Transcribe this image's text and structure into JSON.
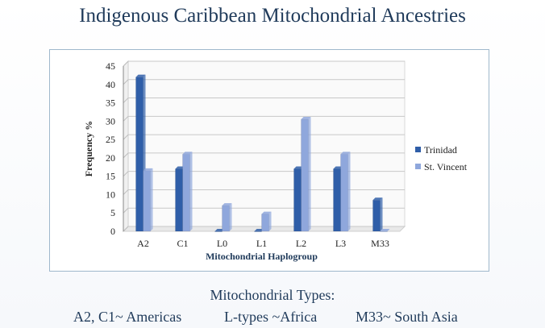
{
  "slide": {
    "title": "Indigenous Caribbean Mitochondrial Ancestries",
    "types_heading": "Mitochondrial Types:",
    "types": [
      "A2, C1~ Americas",
      "L-types ~Africa",
      "M33~ South Asia"
    ]
  },
  "colors": {
    "trinidad": "#2f5ea8",
    "st_vincent": "#8fa7dc",
    "title": "#1f3a5a"
  },
  "chart_data": {
    "type": "bar",
    "title": "",
    "xlabel": "Mitochondrial Haplogroup",
    "ylabel": "Frequency %",
    "categories": [
      "A2",
      "C1",
      "L0",
      "L1",
      "L2",
      "L3",
      "M33"
    ],
    "series": [
      {
        "name": "Trinidad",
        "values": [
          42,
          17,
          0,
          0,
          17,
          17,
          8.5
        ]
      },
      {
        "name": "St. Vincent",
        "values": [
          16.5,
          21,
          7,
          4.7,
          30.5,
          21,
          0
        ]
      }
    ],
    "ylim": [
      0,
      45
    ],
    "yticks": [
      0,
      5,
      10,
      15,
      20,
      25,
      30,
      35,
      40,
      45
    ],
    "grid": true,
    "legend": "right"
  }
}
